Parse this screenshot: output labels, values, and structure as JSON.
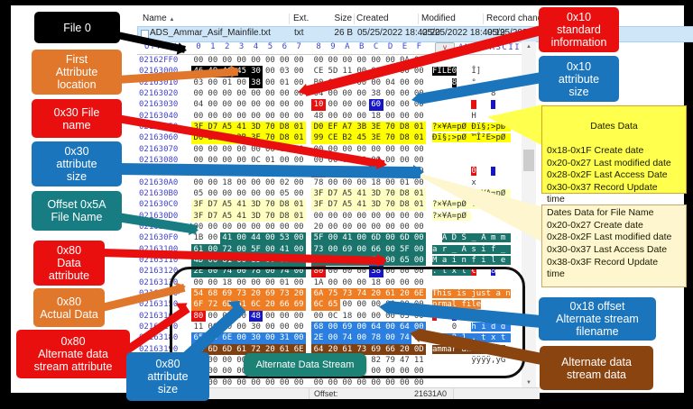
{
  "colors": {
    "red": "#e90f0f",
    "orange": "#e0772b",
    "blue": "#1b75bc",
    "teal_box": "#177d82",
    "teal_hl": "#1a746c",
    "brown": "#8a4410",
    "yellow": "#ffff4d",
    "cream": "#fdf6cf",
    "sky": "#2b7fe0",
    "button_teal": "#1d8276"
  },
  "file_list": {
    "columns": {
      "name": "Name",
      "ext": "Ext.",
      "size": "Size",
      "created": "Created",
      "modified": "Modified",
      "record_change": "Record change"
    },
    "sort_icon": "▲",
    "row": {
      "name": "ADS_Ammar_Asif_Mainfile.txt",
      "ext": "txt",
      "size": "26 B",
      "created": "05/25/2022  18:42:20",
      "modified": "05/25/2022  18:49:19",
      "record_change": "05/25/2022  18:"
    }
  },
  "hex_header": {
    "offset_label": "Offset",
    "cols": [
      "0",
      "1",
      "2",
      "3",
      "4",
      "5",
      "6",
      "7",
      "8",
      "9",
      "A",
      "B",
      "C",
      "D",
      "E",
      "F"
    ],
    "view_button": "v",
    "ansi_label": "ANSI ASCII"
  },
  "scrollbar": {
    "up": "▲",
    "down": "▼"
  },
  "status_bar": {
    "offset_label": "Offset:",
    "offset_value": "21631A0"
  },
  "callouts": {
    "file0": "File 0",
    "first_attribute": "First\nAttribute\nlocation",
    "fn_attr": "0x30 File\nname",
    "fn_size": "0x30\nattribute\nsize",
    "fn_offset": "Offset 0x5A\nFile Name",
    "data_attr": "0x80\nData\nattribute",
    "actual_data": "0x80\nActual Data",
    "ads_attr": "0x80\nAlternate data\nstream attribute",
    "attr_size80": "0x80\nattribute\nsize",
    "si_attr": "0x10\nstandard\ninformation",
    "si_size": "0x10\nattribute\nsize",
    "dates1_title": "Dates Data",
    "dates1_body": "0x18-0x1F  Create date\n0x20-0x27 Last modified date\n0x28-0x2F Last Access Date\n0x30-0x37 Record Update\ntime",
    "dates2_body": "Dates Data for File Name\n0x20-0x27  Create date\n0x28-0x2F Last modified date\n0x30-0x37 Last Access Date\n0x38-0x3F Record Update\ntime",
    "ads_name_offset": "0x18 offset\nAlternate stream\nfilename",
    "ads_data": "Alternate data\nstream data",
    "ads_button": "Alternate Data Stream"
  },
  "hex_rows": [
    {
      "o": "02162FF0",
      "b": [
        "00",
        "00",
        "00",
        "00",
        "00",
        "00",
        "00",
        "00",
        "00",
        "00",
        "00",
        "00",
        "00",
        "00",
        "0A",
        "00"
      ],
      "a": [
        [
          "                ",
          ""
        ]
      ]
    },
    {
      "o": "02163000",
      "b": [
        "46",
        "49",
        "4C",
        "45",
        "30",
        "00",
        "03",
        "00",
        "CE",
        "5D",
        "11",
        "00",
        "00",
        "00",
        "00",
        "00"
      ],
      "k": "KKKKK...........",
      "a": [
        [
          "FILE0",
          "K"
        ],
        [
          "   ",
          ""
        ],
        [
          "Î]",
          ""
        ],
        [
          "      ",
          ""
        ]
      ]
    },
    {
      "o": "02163010",
      "b": [
        "03",
        "00",
        "01",
        "00",
        "38",
        "00",
        "01",
        "00",
        "B0",
        "01",
        "00",
        "00",
        "00",
        "04",
        "00",
        "00"
      ],
      "k": "....K...........",
      "a": [
        [
          "    ",
          ""
        ],
        [
          "8",
          "K"
        ],
        [
          "   ",
          ""
        ],
        [
          "°",
          ""
        ],
        [
          "       ",
          ""
        ]
      ]
    },
    {
      "o": "02163020",
      "b": [
        "00",
        "00",
        "00",
        "00",
        "00",
        "00",
        "00",
        "00",
        "04",
        "00",
        "00",
        "00",
        "38",
        "00",
        "00",
        "00"
      ],
      "a": [
        [
          "            ",
          ""
        ],
        [
          "8",
          ""
        ],
        [
          "   ",
          ""
        ]
      ]
    },
    {
      "o": "02163030",
      "b": [
        "04",
        "00",
        "00",
        "00",
        "00",
        "00",
        "00",
        "00",
        "10",
        "00",
        "00",
        "00",
        "60",
        "00",
        "00",
        "00"
      ],
      "k": "........R...B...",
      "a": [
        [
          "        ",
          ""
        ],
        [
          " ",
          "R"
        ],
        [
          "   ",
          ""
        ],
        [
          " ",
          "B"
        ],
        [
          "   ",
          ""
        ]
      ]
    },
    {
      "o": "02163040",
      "b": [
        "00",
        "00",
        "00",
        "00",
        "00",
        "00",
        "00",
        "00",
        "48",
        "00",
        "00",
        "00",
        "18",
        "00",
        "00",
        "00"
      ],
      "a": [
        [
          "        ",
          ""
        ],
        [
          "H",
          ""
        ],
        [
          "       ",
          ""
        ]
      ]
    },
    {
      "o": "02163050",
      "b": [
        "3F",
        "D7",
        "A5",
        "41",
        "3D",
        "70",
        "D8",
        "01",
        "D0",
        "EF",
        "A7",
        "3B",
        "3E",
        "70",
        "D8",
        "01"
      ],
      "k": "YYYYYYYYYYYYYYYY",
      "a": [
        [
          "?×¥A=pØ Ðï§;>pØ ",
          "Y"
        ]
      ]
    },
    {
      "o": "02163060",
      "b": [
        "D0",
        "EF",
        "A7",
        "3B",
        "3E",
        "70",
        "D8",
        "01",
        "99",
        "CE",
        "B2",
        "45",
        "3E",
        "70",
        "D8",
        "01"
      ],
      "k": "YYYYYYYYYYYYYYYY",
      "a": [
        [
          "Ðï§;>pØ ™Î²E>pØ ",
          "Y"
        ]
      ]
    },
    {
      "o": "02163070",
      "b": [
        "00",
        "00",
        "00",
        "00",
        "00",
        "00",
        "00",
        "00",
        "00",
        "00",
        "00",
        "00",
        "00",
        "00",
        "00",
        "00"
      ],
      "a": [
        [
          "                ",
          ""
        ]
      ]
    },
    {
      "o": "02163080",
      "b": [
        "00",
        "00",
        "00",
        "00",
        "0C",
        "01",
        "00",
        "00",
        "00",
        "00",
        "00",
        "00",
        "00",
        "00",
        "00",
        "00"
      ],
      "a": [
        [
          "                ",
          ""
        ]
      ]
    },
    {
      "o": "02163090",
      "b": [
        "00",
        "00",
        "00",
        "00",
        "00",
        "00",
        "00",
        "00",
        "30",
        "00",
        "00",
        "00",
        "90",
        "00",
        "00",
        "00"
      ],
      "k": "........R...B...",
      "a": [
        [
          "        ",
          ""
        ],
        [
          "0",
          "R"
        ],
        [
          "   ",
          ""
        ],
        [
          " ",
          "B"
        ],
        [
          "   ",
          ""
        ]
      ]
    },
    {
      "o": "021630A0",
      "b": [
        "00",
        "00",
        "18",
        "00",
        "00",
        "00",
        "02",
        "00",
        "78",
        "00",
        "00",
        "00",
        "18",
        "00",
        "01",
        "00"
      ],
      "a": [
        [
          "        ",
          ""
        ],
        [
          "x",
          ""
        ],
        [
          "       ",
          ""
        ]
      ]
    },
    {
      "o": "021630B0",
      "b": [
        "05",
        "00",
        "00",
        "00",
        "00",
        "00",
        "05",
        "00",
        "3F",
        "D7",
        "A5",
        "41",
        "3D",
        "70",
        "D8",
        "01"
      ],
      "k": "........CCCCCCCC",
      "a": [
        [
          "        ",
          ""
        ],
        [
          "?×¥A=pØ ",
          "C"
        ]
      ]
    },
    {
      "o": "021630C0",
      "b": [
        "3F",
        "D7",
        "A5",
        "41",
        "3D",
        "70",
        "D8",
        "01",
        "3F",
        "D7",
        "A5",
        "41",
        "3D",
        "70",
        "D8",
        "01"
      ],
      "k": "CCCCCCCCCCCCCCCC",
      "a": [
        [
          "?×¥A=pØ ?×¥A=pØ ",
          "C"
        ]
      ]
    },
    {
      "o": "021630D0",
      "b": [
        "3F",
        "D7",
        "A5",
        "41",
        "3D",
        "70",
        "D8",
        "01",
        "00",
        "00",
        "00",
        "00",
        "00",
        "00",
        "00",
        "00"
      ],
      "k": "CCCCCCCC........",
      "a": [
        [
          "?×¥A=pØ ",
          "C"
        ],
        [
          "        ",
          ""
        ]
      ]
    },
    {
      "o": "021630E0",
      "b": [
        "00",
        "00",
        "00",
        "00",
        "00",
        "00",
        "00",
        "00",
        "20",
        "00",
        "00",
        "00",
        "00",
        "00",
        "00",
        "00"
      ],
      "a": [
        [
          "                ",
          ""
        ]
      ]
    },
    {
      "o": "021630F0",
      "b": [
        "1B",
        "00",
        "41",
        "00",
        "44",
        "00",
        "53",
        "00",
        "5F",
        "00",
        "41",
        "00",
        "6D",
        "00",
        "6D",
        "00"
      ],
      "k": "..TTTTTTTTTTTTTT",
      "a": [
        [
          "  ",
          ""
        ],
        [
          "A D S _ A m m ",
          "T"
        ]
      ]
    },
    {
      "o": "02163100",
      "b": [
        "61",
        "00",
        "72",
        "00",
        "5F",
        "00",
        "41",
        "00",
        "73",
        "00",
        "69",
        "00",
        "66",
        "00",
        "5F",
        "00"
      ],
      "k": "TTTTTTTTTTTTTTTT",
      "a": [
        [
          "a r _ A s i f _ ",
          "T"
        ]
      ]
    },
    {
      "o": "02163110",
      "b": [
        "4D",
        "00",
        "61",
        "00",
        "69",
        "00",
        "6E",
        "00",
        "66",
        "00",
        "69",
        "00",
        "6C",
        "00",
        "65",
        "00"
      ],
      "k": "TTTTTTTTTTTTTTTT",
      "a": [
        [
          "M a i n f i l e ",
          "T"
        ]
      ]
    },
    {
      "o": "02163120",
      "b": [
        "2E",
        "00",
        "74",
        "00",
        "78",
        "00",
        "74",
        "00",
        "80",
        "00",
        "00",
        "00",
        "38",
        "00",
        "00",
        "00"
      ],
      "k": "TTTTTTTTR...B...",
      "a": [
        [
          ". t x t ",
          "T"
        ],
        [
          "€",
          "R"
        ],
        [
          "   ",
          ""
        ],
        [
          "8",
          "B"
        ],
        [
          "   ",
          ""
        ]
      ]
    },
    {
      "o": "02163130",
      "b": [
        "00",
        "00",
        "18",
        "00",
        "00",
        "00",
        "01",
        "00",
        "1A",
        "00",
        "00",
        "00",
        "18",
        "00",
        "00",
        "00"
      ],
      "a": [
        [
          "                ",
          ""
        ]
      ]
    },
    {
      "o": "02163140",
      "b": [
        "54",
        "68",
        "69",
        "73",
        "20",
        "69",
        "73",
        "20",
        "6A",
        "75",
        "73",
        "74",
        "20",
        "61",
        "20",
        "6E"
      ],
      "k": "OOOOOOOOOOOOOOOO",
      "a": [
        [
          "This is just a n",
          "O"
        ]
      ]
    },
    {
      "o": "02163150",
      "b": [
        "6F",
        "72",
        "6D",
        "61",
        "6C",
        "20",
        "66",
        "69",
        "6C",
        "65",
        "00",
        "00",
        "00",
        "00",
        "00",
        "00"
      ],
      "k": "OOOOOOOOOO......",
      "a": [
        [
          "ormal file",
          "O"
        ],
        [
          "      ",
          ""
        ]
      ]
    },
    {
      "o": "02163160",
      "b": [
        "80",
        "00",
        "00",
        "00",
        "48",
        "00",
        "00",
        "00",
        "00",
        "0C",
        "18",
        "00",
        "00",
        "00",
        "03",
        "00"
      ],
      "k": "R...B...........",
      "a": [
        [
          "€",
          "R"
        ],
        [
          "   ",
          ""
        ],
        [
          "H",
          "B"
        ],
        [
          "           ",
          ""
        ]
      ]
    },
    {
      "o": "02163170",
      "b": [
        "11",
        "00",
        "00",
        "00",
        "30",
        "00",
        "00",
        "00",
        "68",
        "00",
        "69",
        "00",
        "64",
        "00",
        "64",
        "00"
      ],
      "k": "........SSSSSSSS",
      "a": [
        [
          "    ",
          ""
        ],
        [
          "0",
          ""
        ],
        [
          "   ",
          ""
        ],
        [
          "h i d d ",
          "S"
        ]
      ]
    },
    {
      "o": "02163180",
      "b": [
        "65",
        "00",
        "6E",
        "00",
        "30",
        "00",
        "31",
        "00",
        "2E",
        "00",
        "74",
        "00",
        "78",
        "00",
        "74",
        "00"
      ],
      "k": "SSSSSSSSSSSSSSS.",
      "a": [
        [
          "e n 0 1 . t x t ",
          "S"
        ]
      ]
    },
    {
      "o": "02163190",
      "b": [
        "61",
        "6D",
        "6D",
        "61",
        "72",
        "20",
        "61",
        "6E",
        "64",
        "20",
        "61",
        "73",
        "69",
        "66",
        "20",
        "0D"
      ],
      "k": "NNNNNNNNNNNNNNNN",
      "a": [
        [
          "ammar and asif ",
          "N"
        ],
        [
          " ",
          ""
        ]
      ]
    },
    {
      "o": "021631A0",
      "b": [
        "0A",
        "00",
        "00",
        "00",
        "00",
        "00",
        "00",
        "00",
        "FF",
        "FF",
        "FF",
        "FF",
        "82",
        "79",
        "47",
        "11"
      ],
      "k": "N...............",
      "a": [
        [
          "        ",
          ""
        ],
        [
          "ÿÿÿÿ‚yG ",
          ""
        ]
      ]
    },
    {
      "o": "021631B0",
      "b": [
        "00",
        "00",
        "00",
        "00",
        "00",
        "00",
        "00",
        "00",
        "00",
        "00",
        "00",
        "00",
        "00",
        "00",
        "00",
        "00"
      ],
      "a": [
        [
          "                ",
          ""
        ]
      ]
    },
    {
      "o": "021631C0",
      "b": [
        "00",
        "00",
        "00",
        "00",
        "00",
        "00",
        "00",
        "00",
        "00",
        "00",
        "00",
        "00",
        "00",
        "00",
        "00",
        "00"
      ],
      "a": [
        [
          "                ",
          ""
        ]
      ]
    },
    {
      "o": "021631D0",
      "b": [
        "00",
        "00",
        "00",
        "00",
        "00",
        "00",
        "00",
        "00",
        "00",
        "00",
        "00",
        "00",
        "00",
        "00",
        "00",
        "00"
      ],
      "a": [
        [
          "                ",
          ""
        ]
      ]
    }
  ]
}
